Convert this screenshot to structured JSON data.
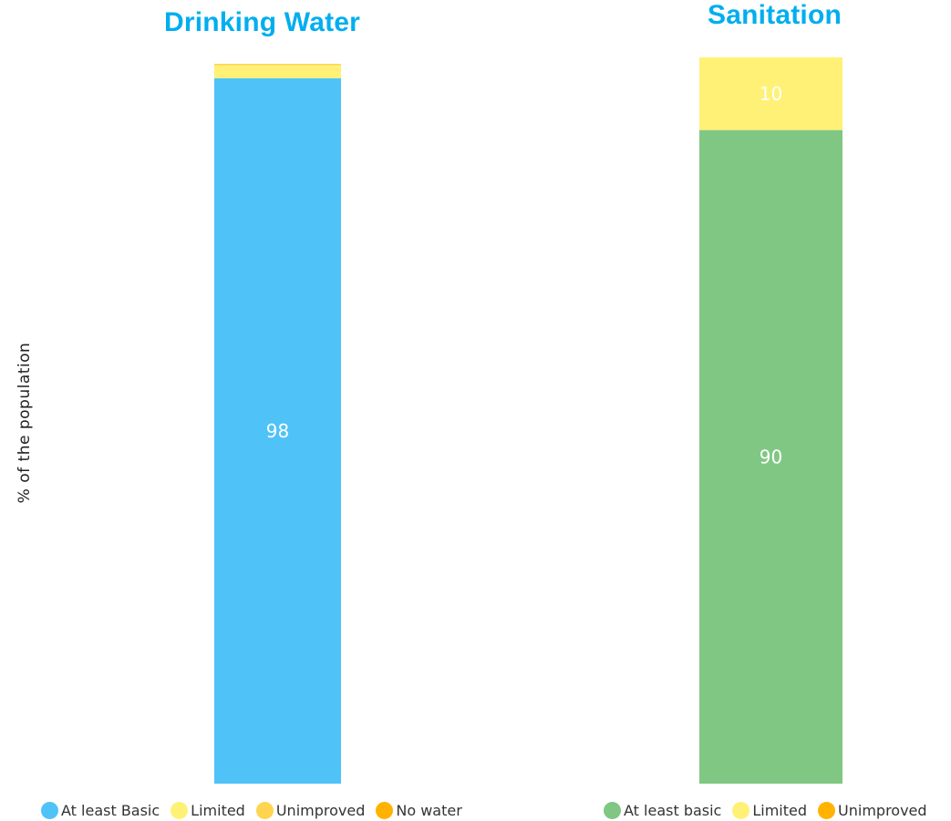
{
  "chart_data": [
    {
      "type": "bar",
      "stacked": true,
      "title": "Drinking Water",
      "ylabel": "% of the population",
      "ylim": [
        0,
        100
      ],
      "categories": [
        ""
      ],
      "series": [
        {
          "name": "At least Basic",
          "color": "#4fc3f7",
          "values": [
            98
          ],
          "label": "98"
        },
        {
          "name": "Limited",
          "color": "#fff176",
          "values": [
            1.8
          ],
          "label": ""
        },
        {
          "name": "Unimproved",
          "color": "#ffd54f",
          "values": [
            0.2
          ],
          "label": ""
        },
        {
          "name": "No water",
          "color": "#ffb300",
          "values": [
            0
          ],
          "label": ""
        }
      ],
      "legend": "bottom"
    },
    {
      "type": "bar",
      "stacked": true,
      "title": "Sanitation",
      "ylim": [
        0,
        100
      ],
      "categories": [
        ""
      ],
      "series": [
        {
          "name": "At least basic",
          "color": "#81c784",
          "values": [
            90
          ],
          "label": "90"
        },
        {
          "name": "Limited",
          "color": "#fff176",
          "values": [
            10
          ],
          "label": "10"
        },
        {
          "name": "Unimproved",
          "color": "#ffb300",
          "values": [
            0
          ],
          "label": ""
        }
      ],
      "legend": "bottom"
    }
  ]
}
